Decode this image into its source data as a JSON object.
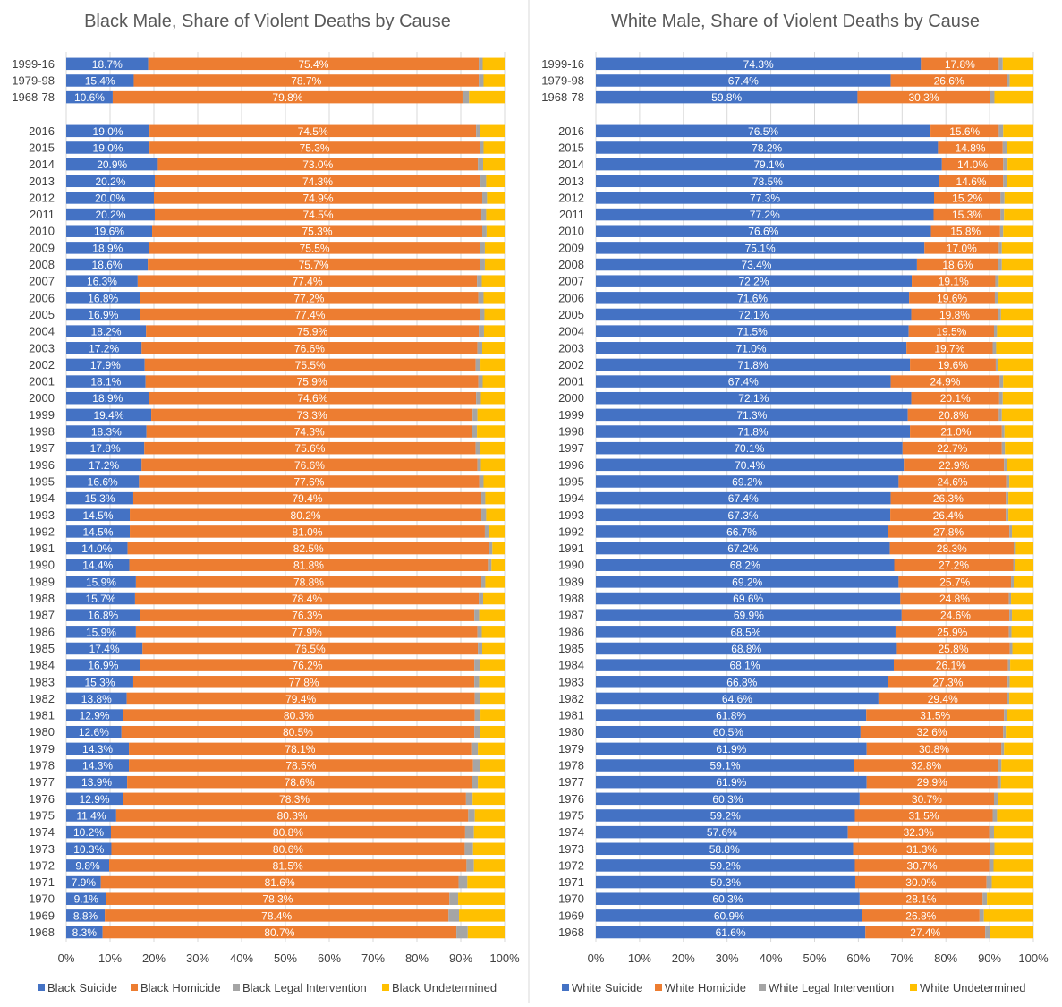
{
  "colors": {
    "suicide": "#4472C4",
    "homicide": "#ED7D31",
    "legal": "#A5A5A5",
    "undetermined": "#FFC000",
    "grid": "#D9D9D9",
    "text": "#404040",
    "title": "#595959"
  },
  "chart_data": [
    {
      "type": "bar",
      "orientation": "horizontal",
      "stacked": true,
      "title": "Black Male, Share of Violent Deaths by Cause",
      "xlim": [
        0,
        100
      ],
      "x_ticks": [
        "0%",
        "10%",
        "20%",
        "30%",
        "40%",
        "50%",
        "60%",
        "70%",
        "80%",
        "90%",
        "100%"
      ],
      "grid": true,
      "legend_position": "bottom",
      "series_names": [
        "Black Suicide",
        "Black Homicide",
        "Black Legal Intervention",
        "Black Undetermined"
      ],
      "summary_categories": [
        "1999-16",
        "1979-98",
        "1968-78"
      ],
      "summary_values": [
        [
          18.7,
          75.4,
          0.9,
          5.0
        ],
        [
          15.4,
          78.7,
          1.1,
          4.8
        ],
        [
          10.6,
          79.8,
          1.5,
          8.1
        ]
      ],
      "categories": [
        "2016",
        "2015",
        "2014",
        "2013",
        "2012",
        "2011",
        "2010",
        "2009",
        "2008",
        "2007",
        "2006",
        "2005",
        "2004",
        "2003",
        "2002",
        "2001",
        "2000",
        "1999",
        "1998",
        "1997",
        "1996",
        "1995",
        "1994",
        "1993",
        "1992",
        "1991",
        "1990",
        "1989",
        "1988",
        "1987",
        "1986",
        "1985",
        "1984",
        "1983",
        "1982",
        "1981",
        "1980",
        "1979",
        "1978",
        "1977",
        "1976",
        "1975",
        "1974",
        "1973",
        "1972",
        "1971",
        "1970",
        "1969",
        "1968"
      ],
      "values": [
        [
          19.0,
          74.5,
          0.8,
          5.7
        ],
        [
          19.0,
          75.3,
          0.9,
          4.8
        ],
        [
          20.9,
          73.0,
          1.2,
          4.9
        ],
        [
          20.2,
          74.3,
          1.3,
          4.2
        ],
        [
          20.0,
          74.9,
          1.1,
          4.0
        ],
        [
          20.2,
          74.5,
          1.1,
          4.2
        ],
        [
          19.6,
          75.3,
          1.0,
          4.1
        ],
        [
          18.9,
          75.5,
          1.1,
          4.5
        ],
        [
          18.6,
          75.7,
          1.2,
          4.5
        ],
        [
          16.3,
          77.4,
          1.1,
          5.2
        ],
        [
          16.8,
          77.2,
          1.2,
          4.8
        ],
        [
          16.9,
          77.4,
          1.1,
          4.6
        ],
        [
          18.2,
          75.9,
          1.2,
          4.7
        ],
        [
          17.2,
          76.6,
          1.1,
          5.1
        ],
        [
          17.9,
          75.5,
          1.1,
          5.5
        ],
        [
          18.1,
          75.9,
          1.0,
          5.0
        ],
        [
          18.9,
          74.6,
          1.1,
          5.4
        ],
        [
          19.4,
          73.3,
          1.1,
          6.2
        ],
        [
          18.3,
          74.3,
          1.1,
          6.3
        ],
        [
          17.8,
          75.6,
          0.9,
          5.7
        ],
        [
          17.2,
          76.6,
          0.8,
          5.4
        ],
        [
          16.6,
          77.6,
          1.0,
          4.8
        ],
        [
          15.3,
          79.4,
          0.9,
          4.4
        ],
        [
          14.5,
          80.2,
          1.1,
          4.2
        ],
        [
          14.5,
          81.0,
          0.9,
          3.6
        ],
        [
          14.0,
          82.5,
          0.7,
          2.8
        ],
        [
          14.4,
          81.8,
          0.8,
          3.0
        ],
        [
          15.9,
          78.8,
          0.9,
          4.4
        ],
        [
          15.7,
          78.4,
          1.0,
          4.9
        ],
        [
          16.8,
          76.3,
          1.1,
          5.8
        ],
        [
          15.9,
          77.9,
          1.0,
          5.2
        ],
        [
          17.4,
          76.5,
          1.0,
          5.1
        ],
        [
          16.9,
          76.2,
          1.2,
          5.7
        ],
        [
          15.3,
          77.8,
          1.1,
          5.8
        ],
        [
          13.8,
          79.4,
          1.2,
          5.6
        ],
        [
          12.9,
          80.3,
          1.3,
          5.5
        ],
        [
          12.6,
          80.5,
          1.2,
          5.7
        ],
        [
          14.3,
          78.1,
          1.5,
          6.1
        ],
        [
          14.3,
          78.5,
          1.5,
          5.7
        ],
        [
          13.9,
          78.6,
          1.4,
          6.1
        ],
        [
          12.9,
          78.3,
          1.5,
          7.3
        ],
        [
          11.4,
          80.3,
          1.5,
          6.8
        ],
        [
          10.2,
          80.8,
          2.0,
          7.0
        ],
        [
          10.3,
          80.6,
          1.9,
          7.2
        ],
        [
          9.8,
          81.5,
          1.7,
          7.0
        ],
        [
          7.9,
          81.6,
          2.0,
          8.5
        ],
        [
          9.1,
          78.3,
          2.0,
          10.6
        ],
        [
          8.8,
          78.4,
          2.4,
          10.4
        ],
        [
          8.3,
          80.7,
          2.6,
          8.4
        ]
      ]
    },
    {
      "type": "bar",
      "orientation": "horizontal",
      "stacked": true,
      "title": "White Male, Share of Violent Deaths by Cause",
      "xlim": [
        0,
        100
      ],
      "x_ticks": [
        "0%",
        "10%",
        "20%",
        "30%",
        "40%",
        "50%",
        "60%",
        "70%",
        "80%",
        "90%",
        "100%"
      ],
      "grid": true,
      "legend_position": "bottom",
      "series_names": [
        "White Suicide",
        "White Homicide",
        "White Legal Intervention",
        "White Undetermined"
      ],
      "summary_categories": [
        "1999-16",
        "1979-98",
        "1968-78"
      ],
      "summary_values": [
        [
          74.3,
          17.8,
          0.9,
          7.0
        ],
        [
          67.4,
          26.6,
          0.6,
          5.4
        ],
        [
          59.8,
          30.3,
          1.0,
          8.9
        ]
      ],
      "categories": [
        "2016",
        "2015",
        "2014",
        "2013",
        "2012",
        "2011",
        "2010",
        "2009",
        "2008",
        "2007",
        "2006",
        "2005",
        "2004",
        "2003",
        "2002",
        "2001",
        "2000",
        "1999",
        "1998",
        "1997",
        "1996",
        "1995",
        "1994",
        "1993",
        "1992",
        "1991",
        "1990",
        "1989",
        "1988",
        "1987",
        "1986",
        "1985",
        "1984",
        "1983",
        "1982",
        "1981",
        "1980",
        "1979",
        "1978",
        "1977",
        "1976",
        "1975",
        "1974",
        "1973",
        "1972",
        "1971",
        "1970",
        "1969",
        "1968"
      ],
      "values": [
        [
          76.5,
          15.6,
          1.0,
          6.9
        ],
        [
          78.2,
          14.8,
          0.9,
          6.1
        ],
        [
          79.1,
          14.0,
          1.0,
          5.9
        ],
        [
          78.5,
          14.6,
          0.8,
          6.1
        ],
        [
          77.3,
          15.2,
          0.9,
          6.6
        ],
        [
          77.2,
          15.3,
          0.8,
          6.7
        ],
        [
          76.6,
          15.8,
          0.7,
          6.9
        ],
        [
          75.1,
          17.0,
          0.7,
          7.2
        ],
        [
          73.4,
          18.6,
          0.8,
          7.2
        ],
        [
          72.2,
          19.1,
          0.8,
          7.9
        ],
        [
          71.6,
          19.6,
          0.7,
          8.1
        ],
        [
          72.1,
          19.8,
          0.7,
          7.4
        ],
        [
          71.5,
          19.5,
          0.7,
          8.3
        ],
        [
          71.0,
          19.7,
          0.8,
          8.5
        ],
        [
          71.8,
          19.6,
          0.6,
          8.0
        ],
        [
          67.4,
          24.9,
          0.8,
          6.9
        ],
        [
          72.1,
          20.1,
          0.8,
          7.0
        ],
        [
          71.3,
          20.8,
          0.7,
          7.2
        ],
        [
          71.8,
          21.0,
          0.6,
          6.6
        ],
        [
          70.1,
          22.7,
          0.7,
          6.5
        ],
        [
          70.4,
          22.9,
          0.6,
          6.1
        ],
        [
          69.2,
          24.6,
          0.7,
          5.5
        ],
        [
          67.4,
          26.3,
          0.6,
          5.7
        ],
        [
          67.3,
          26.4,
          0.6,
          5.7
        ],
        [
          66.7,
          27.8,
          0.6,
          4.9
        ],
        [
          67.2,
          28.3,
          0.5,
          4.0
        ],
        [
          68.2,
          27.2,
          0.5,
          4.1
        ],
        [
          69.2,
          25.7,
          0.6,
          4.5
        ],
        [
          69.6,
          24.8,
          0.5,
          5.1
        ],
        [
          69.9,
          24.6,
          0.6,
          4.9
        ],
        [
          68.5,
          25.9,
          0.6,
          5.0
        ],
        [
          68.8,
          25.8,
          0.6,
          4.8
        ],
        [
          68.1,
          26.1,
          0.5,
          5.3
        ],
        [
          66.8,
          27.3,
          0.5,
          5.4
        ],
        [
          64.6,
          29.4,
          0.5,
          5.5
        ],
        [
          61.8,
          31.5,
          0.6,
          6.1
        ],
        [
          60.5,
          32.6,
          0.6,
          6.3
        ],
        [
          61.9,
          30.8,
          0.6,
          6.7
        ],
        [
          59.1,
          32.8,
          0.8,
          7.3
        ],
        [
          61.9,
          29.9,
          0.8,
          7.4
        ],
        [
          60.3,
          30.7,
          0.9,
          8.1
        ],
        [
          59.2,
          31.5,
          1.0,
          8.3
        ],
        [
          57.6,
          32.3,
          1.1,
          9.0
        ],
        [
          58.8,
          31.3,
          1.0,
          8.9
        ],
        [
          59.2,
          30.7,
          1.0,
          9.1
        ],
        [
          59.3,
          30.0,
          1.2,
          9.5
        ],
        [
          60.3,
          28.1,
          1.0,
          10.6
        ],
        [
          60.9,
          26.8,
          1.0,
          11.3
        ],
        [
          61.6,
          27.4,
          1.1,
          9.9
        ]
      ]
    }
  ]
}
